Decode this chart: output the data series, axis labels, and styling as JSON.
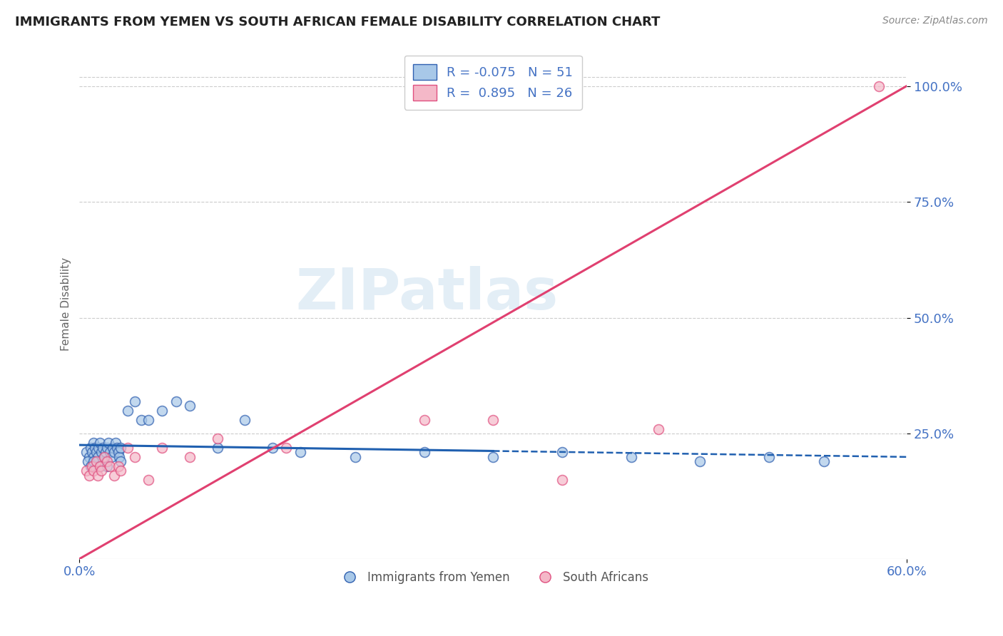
{
  "title": "IMMIGRANTS FROM YEMEN VS SOUTH AFRICAN FEMALE DISABILITY CORRELATION CHART",
  "source": "Source: ZipAtlas.com",
  "xlim": [
    0.0,
    0.6
  ],
  "ylim": [
    -0.02,
    1.08
  ],
  "yticks": [
    0.25,
    0.5,
    0.75,
    1.0
  ],
  "ytick_labels": [
    "25.0%",
    "50.0%",
    "75.0%",
    "100.0%"
  ],
  "xticks": [
    0.0,
    0.6
  ],
  "xtick_labels": [
    "0.0%",
    "60.0%"
  ],
  "blue_R": -0.075,
  "blue_N": 51,
  "pink_R": 0.895,
  "pink_N": 26,
  "blue_color": "#a8c8e8",
  "pink_color": "#f4b8c8",
  "blue_edge_color": "#3060b0",
  "pink_edge_color": "#e05080",
  "blue_line_color": "#2060b0",
  "pink_line_color": "#e04070",
  "watermark": "ZIPatlas",
  "legend_label_blue": "Immigrants from Yemen",
  "legend_label_pink": "South Africans",
  "background_color": "#ffffff",
  "grid_color": "#cccccc",
  "title_color": "#222222",
  "axis_label_color": "#4472c4",
  "blue_scatter_x": [
    0.005,
    0.007,
    0.008,
    0.009,
    0.01,
    0.01,
    0.011,
    0.012,
    0.013,
    0.014,
    0.015,
    0.016,
    0.017,
    0.018,
    0.019,
    0.02,
    0.021,
    0.022,
    0.023,
    0.024,
    0.025,
    0.026,
    0.027,
    0.028,
    0.029,
    0.03,
    0.035,
    0.04,
    0.045,
    0.05,
    0.06,
    0.07,
    0.08,
    0.1,
    0.12,
    0.14,
    0.16,
    0.2,
    0.25,
    0.3,
    0.35,
    0.4,
    0.45,
    0.5,
    0.54,
    0.006,
    0.008,
    0.01,
    0.015,
    0.02,
    0.03
  ],
  "blue_scatter_y": [
    0.21,
    0.2,
    0.22,
    0.21,
    0.23,
    0.2,
    0.22,
    0.21,
    0.2,
    0.22,
    0.23,
    0.21,
    0.22,
    0.2,
    0.21,
    0.22,
    0.23,
    0.21,
    0.2,
    0.22,
    0.21,
    0.23,
    0.22,
    0.21,
    0.2,
    0.22,
    0.3,
    0.32,
    0.28,
    0.28,
    0.3,
    0.32,
    0.31,
    0.22,
    0.28,
    0.22,
    0.21,
    0.2,
    0.21,
    0.2,
    0.21,
    0.2,
    0.19,
    0.2,
    0.19,
    0.19,
    0.18,
    0.19,
    0.18,
    0.18,
    0.19
  ],
  "pink_scatter_x": [
    0.005,
    0.007,
    0.009,
    0.01,
    0.012,
    0.013,
    0.015,
    0.016,
    0.018,
    0.02,
    0.022,
    0.025,
    0.028,
    0.03,
    0.035,
    0.04,
    0.05,
    0.06,
    0.08,
    0.1,
    0.15,
    0.25,
    0.3,
    0.35,
    0.42,
    0.58
  ],
  "pink_scatter_y": [
    0.17,
    0.16,
    0.18,
    0.17,
    0.19,
    0.16,
    0.18,
    0.17,
    0.2,
    0.19,
    0.18,
    0.16,
    0.18,
    0.17,
    0.22,
    0.2,
    0.15,
    0.22,
    0.2,
    0.24,
    0.22,
    0.28,
    0.28,
    0.15,
    0.26,
    1.0
  ],
  "blue_line_solid_end": 0.3,
  "pink_line_x0": 0.0,
  "pink_line_y0": -0.02,
  "pink_line_x1": 0.6,
  "pink_line_y1": 1.0
}
